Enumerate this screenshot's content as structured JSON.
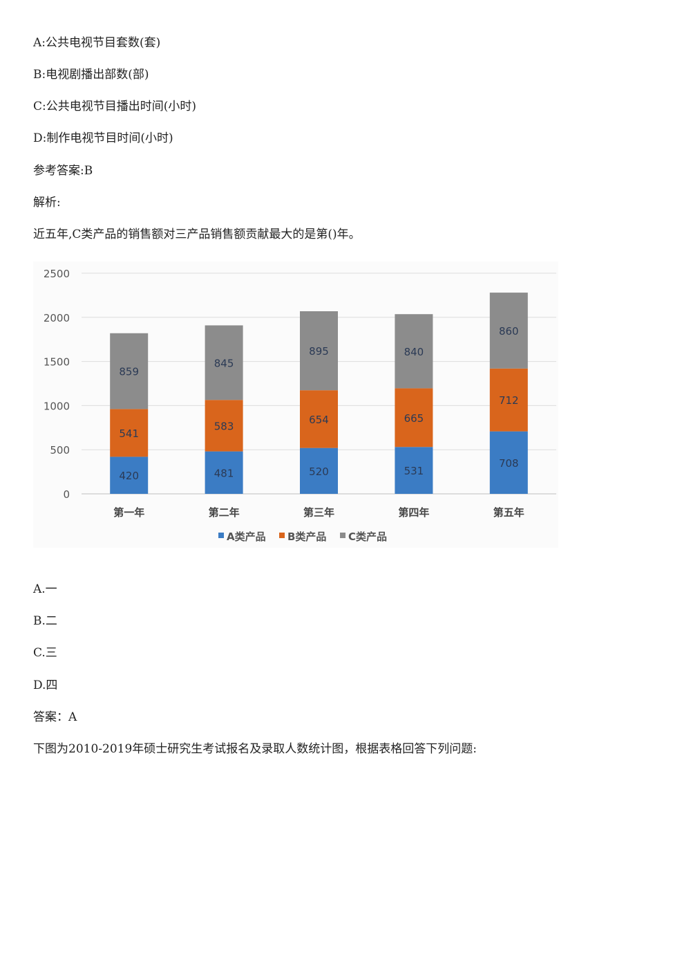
{
  "lines": [
    "A:公共电视节目套数(套)",
    "B:电视剧播出部数(部)",
    "C:公共电视节目播出时间(小时)",
    "D:制作电视节目时间(小时)",
    "参考答案:B",
    "解析:",
    "近五年,C类产品的销售额对三产品销售额贡献最大的是第()年。"
  ],
  "options": [
    "A.一",
    "B.二",
    "C.三",
    "D.四"
  ],
  "answer": "答案：A",
  "next_question": "下图为2010-2019年硕士研究生考试报名及录取人数统计图，根据表格回答下列问题:",
  "chart_data": {
    "type": "bar",
    "stacked": true,
    "categories": [
      "第一年",
      "第二年",
      "第三年",
      "第四年",
      "第五年"
    ],
    "series": [
      {
        "name": "A类产品",
        "values": [
          420,
          481,
          520,
          531,
          708
        ],
        "color": "#3b7cc4"
      },
      {
        "name": "B类产品",
        "values": [
          541,
          583,
          654,
          665,
          712
        ],
        "color": "#d9651c"
      },
      {
        "name": "C类产品",
        "values": [
          859,
          845,
          895,
          840,
          860
        ],
        "color": "#8c8c8c"
      }
    ],
    "yticks": [
      0,
      500,
      1000,
      1500,
      2000,
      2500
    ],
    "ylim": [
      0,
      2500
    ],
    "grid": true,
    "legend": "bottom",
    "label_color": "#2b3a55"
  }
}
